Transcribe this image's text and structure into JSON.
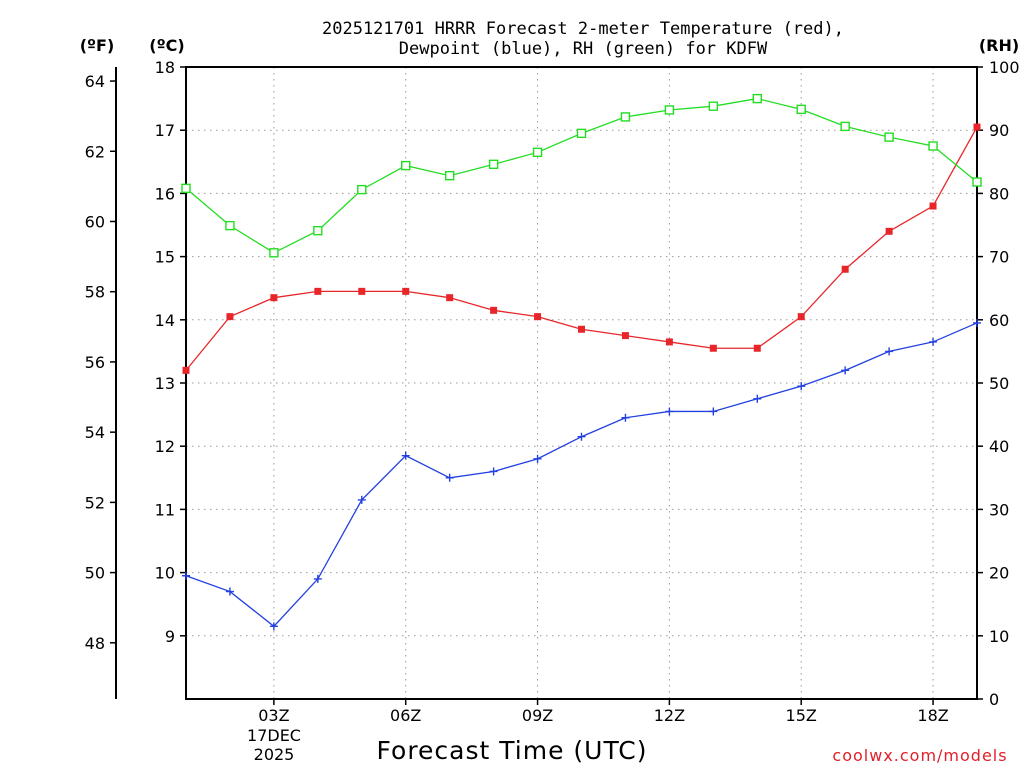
{
  "chart_data": {
    "type": "line",
    "title_line1": "2025121701 HRRR Forecast 2-meter Temperature (red),",
    "title_line2": "Dewpoint (blue), RH (green) for KDFW",
    "xlabel": "Forecast Time (UTC)",
    "date_label_day": "17DEC",
    "date_label_year": "2025",
    "credit": "coolwx.com/models",
    "unit_left_f": "(ºF)",
    "unit_left_c": "(ºC)",
    "unit_right": "(RH)",
    "x_hours": [
      1,
      2,
      3,
      4,
      5,
      6,
      7,
      8,
      9,
      10,
      11,
      12,
      13,
      14,
      15,
      16,
      17,
      18,
      19
    ],
    "xlim": [
      1,
      19
    ],
    "x_ticks": [
      {
        "hour": 3,
        "label": "03Z"
      },
      {
        "hour": 6,
        "label": "06Z"
      },
      {
        "hour": 9,
        "label": "09Z"
      },
      {
        "hour": 12,
        "label": "12Z"
      },
      {
        "hour": 15,
        "label": "15Z"
      },
      {
        "hour": 18,
        "label": "18Z"
      }
    ],
    "ylim_c": [
      8.0,
      18.0
    ],
    "y_ticks_c": [
      "9",
      "10",
      "11",
      "12",
      "13",
      "14",
      "15",
      "16",
      "17",
      "18"
    ],
    "y_ticks_f": [
      "48",
      "50",
      "52",
      "54",
      "56",
      "58",
      "60",
      "62",
      "64"
    ],
    "ylim_rh": [
      0,
      100
    ],
    "y_ticks_rh": [
      "0",
      "10",
      "20",
      "30",
      "40",
      "50",
      "60",
      "70",
      "80",
      "90",
      "100"
    ],
    "series": [
      {
        "name": "Temperature",
        "color": "#e8262a",
        "marker": "filled-square",
        "axis": "c",
        "values": [
          13.2,
          14.05,
          14.35,
          14.45,
          14.45,
          14.45,
          14.35,
          14.15,
          14.05,
          13.85,
          13.75,
          13.65,
          13.55,
          13.55,
          14.05,
          14.8,
          15.4,
          15.8,
          17.05
        ]
      },
      {
        "name": "Dewpoint",
        "color": "#2240e0",
        "marker": "plus",
        "axis": "c",
        "values": [
          9.95,
          9.7,
          9.15,
          9.9,
          11.15,
          11.85,
          11.5,
          11.6,
          11.8,
          12.15,
          12.45,
          12.55,
          12.55,
          12.75,
          12.95,
          13.2,
          13.5,
          13.65,
          13.95
        ]
      },
      {
        "name": "RH",
        "color": "#22dd22",
        "marker": "open-square",
        "axis": "rh",
        "values": [
          80.8,
          74.9,
          70.6,
          74.1,
          80.6,
          84.4,
          82.8,
          84.6,
          86.5,
          89.5,
          92.1,
          93.2,
          93.8,
          95.0,
          93.3,
          90.6,
          88.9,
          87.5,
          81.8
        ]
      }
    ]
  }
}
